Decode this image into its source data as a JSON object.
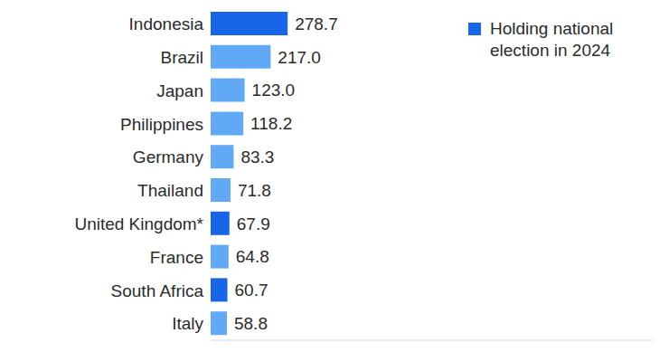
{
  "chart_data": {
    "type": "bar",
    "orientation": "horizontal",
    "categories": [
      "Indonesia",
      "Brazil",
      "Japan",
      "Philippines",
      "Germany",
      "Thailand",
      "United Kingdom*",
      "France",
      "South Africa",
      "Italy"
    ],
    "values": [
      278.7,
      217.0,
      123.0,
      118.2,
      83.3,
      71.8,
      67.9,
      64.8,
      60.7,
      58.8
    ],
    "value_labels": [
      "278.7",
      "217.0",
      "123.0",
      "118.2",
      "83.3",
      "71.8",
      "67.9",
      "64.8",
      "60.7",
      "58.8"
    ],
    "colors": [
      "#1865e8",
      "#62a9f5",
      "#62a9f5",
      "#62a9f5",
      "#62a9f5",
      "#62a9f5",
      "#1865e8",
      "#62a9f5",
      "#1865e8",
      "#62a9f5"
    ],
    "xlim": [
      0,
      1600
    ],
    "xticks": [],
    "data_labels": true,
    "tick_labels": "y",
    "grid": false,
    "annotations": [
      {
        "text": "Holding national election in 2024",
        "color": "#1865e8"
      }
    ]
  }
}
